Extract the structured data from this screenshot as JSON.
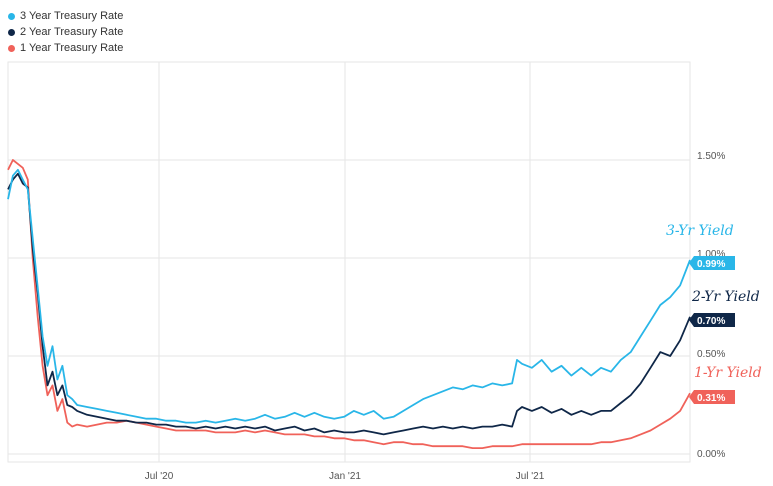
{
  "chart_data": {
    "type": "line",
    "x_axis_ticks": [
      "Jul '20",
      "Jan '21",
      "Jul '21"
    ],
    "y_axis_ticks": [
      "0.00%",
      "0.50%",
      "1.00%",
      "1.50%"
    ],
    "ylim": [
      0,
      2.0
    ],
    "grid": true,
    "legend_position": "top-left",
    "series": [
      {
        "name": "3 Year Treasury Rate",
        "color": "#29b6e8",
        "callout": "3-Yr Yield",
        "end_label": "0.99%",
        "points": [
          [
            0,
            1.3
          ],
          [
            5,
            1.42
          ],
          [
            10,
            1.45
          ],
          [
            15,
            1.4
          ],
          [
            20,
            1.35
          ],
          [
            25,
            1.1
          ],
          [
            30,
            0.85
          ],
          [
            35,
            0.6
          ],
          [
            40,
            0.45
          ],
          [
            45,
            0.55
          ],
          [
            50,
            0.38
          ],
          [
            55,
            0.45
          ],
          [
            60,
            0.3
          ],
          [
            65,
            0.28
          ],
          [
            70,
            0.25
          ],
          [
            80,
            0.24
          ],
          [
            90,
            0.23
          ],
          [
            100,
            0.22
          ],
          [
            110,
            0.21
          ],
          [
            120,
            0.2
          ],
          [
            130,
            0.19
          ],
          [
            140,
            0.18
          ],
          [
            150,
            0.18
          ],
          [
            160,
            0.17
          ],
          [
            170,
            0.17
          ],
          [
            180,
            0.16
          ],
          [
            190,
            0.16
          ],
          [
            200,
            0.17
          ],
          [
            210,
            0.16
          ],
          [
            220,
            0.17
          ],
          [
            230,
            0.18
          ],
          [
            240,
            0.17
          ],
          [
            250,
            0.18
          ],
          [
            260,
            0.2
          ],
          [
            270,
            0.18
          ],
          [
            280,
            0.19
          ],
          [
            290,
            0.21
          ],
          [
            300,
            0.19
          ],
          [
            310,
            0.21
          ],
          [
            320,
            0.19
          ],
          [
            330,
            0.18
          ],
          [
            340,
            0.19
          ],
          [
            350,
            0.22
          ],
          [
            360,
            0.2
          ],
          [
            370,
            0.22
          ],
          [
            380,
            0.18
          ],
          [
            390,
            0.19
          ],
          [
            400,
            0.22
          ],
          [
            410,
            0.25
          ],
          [
            420,
            0.28
          ],
          [
            430,
            0.3
          ],
          [
            440,
            0.32
          ],
          [
            450,
            0.34
          ],
          [
            460,
            0.33
          ],
          [
            470,
            0.35
          ],
          [
            480,
            0.34
          ],
          [
            490,
            0.36
          ],
          [
            500,
            0.35
          ],
          [
            510,
            0.36
          ],
          [
            515,
            0.48
          ],
          [
            520,
            0.46
          ],
          [
            530,
            0.44
          ],
          [
            540,
            0.48
          ],
          [
            550,
            0.42
          ],
          [
            560,
            0.45
          ],
          [
            570,
            0.4
          ],
          [
            580,
            0.44
          ],
          [
            590,
            0.4
          ],
          [
            600,
            0.44
          ],
          [
            610,
            0.42
          ],
          [
            620,
            0.48
          ],
          [
            630,
            0.52
          ],
          [
            640,
            0.6
          ],
          [
            650,
            0.68
          ],
          [
            660,
            0.76
          ],
          [
            670,
            0.8
          ],
          [
            680,
            0.86
          ],
          [
            690,
            0.99
          ]
        ]
      },
      {
        "name": "2 Year Treasury Rate",
        "color": "#0f2748",
        "callout": "2-Yr Yield",
        "end_label": "0.70%",
        "points": [
          [
            0,
            1.35
          ],
          [
            5,
            1.4
          ],
          [
            10,
            1.43
          ],
          [
            15,
            1.38
          ],
          [
            20,
            1.36
          ],
          [
            25,
            1.05
          ],
          [
            30,
            0.82
          ],
          [
            35,
            0.55
          ],
          [
            40,
            0.35
          ],
          [
            45,
            0.42
          ],
          [
            50,
            0.3
          ],
          [
            55,
            0.35
          ],
          [
            60,
            0.25
          ],
          [
            65,
            0.24
          ],
          [
            70,
            0.22
          ],
          [
            80,
            0.2
          ],
          [
            90,
            0.19
          ],
          [
            100,
            0.18
          ],
          [
            110,
            0.17
          ],
          [
            120,
            0.17
          ],
          [
            130,
            0.16
          ],
          [
            140,
            0.16
          ],
          [
            150,
            0.15
          ],
          [
            160,
            0.15
          ],
          [
            170,
            0.14
          ],
          [
            180,
            0.14
          ],
          [
            190,
            0.13
          ],
          [
            200,
            0.14
          ],
          [
            210,
            0.13
          ],
          [
            220,
            0.14
          ],
          [
            230,
            0.13
          ],
          [
            240,
            0.14
          ],
          [
            250,
            0.13
          ],
          [
            260,
            0.14
          ],
          [
            270,
            0.12
          ],
          [
            280,
            0.13
          ],
          [
            290,
            0.14
          ],
          [
            300,
            0.12
          ],
          [
            310,
            0.13
          ],
          [
            320,
            0.11
          ],
          [
            330,
            0.12
          ],
          [
            340,
            0.11
          ],
          [
            350,
            0.11
          ],
          [
            360,
            0.12
          ],
          [
            370,
            0.11
          ],
          [
            380,
            0.1
          ],
          [
            390,
            0.11
          ],
          [
            400,
            0.12
          ],
          [
            410,
            0.13
          ],
          [
            420,
            0.14
          ],
          [
            430,
            0.13
          ],
          [
            440,
            0.14
          ],
          [
            450,
            0.13
          ],
          [
            460,
            0.14
          ],
          [
            470,
            0.13
          ],
          [
            480,
            0.14
          ],
          [
            490,
            0.14
          ],
          [
            500,
            0.15
          ],
          [
            510,
            0.14
          ],
          [
            515,
            0.22
          ],
          [
            520,
            0.24
          ],
          [
            530,
            0.22
          ],
          [
            540,
            0.24
          ],
          [
            550,
            0.21
          ],
          [
            560,
            0.23
          ],
          [
            570,
            0.2
          ],
          [
            580,
            0.22
          ],
          [
            590,
            0.2
          ],
          [
            600,
            0.22
          ],
          [
            610,
            0.22
          ],
          [
            620,
            0.26
          ],
          [
            630,
            0.3
          ],
          [
            640,
            0.36
          ],
          [
            650,
            0.44
          ],
          [
            660,
            0.52
          ],
          [
            670,
            0.5
          ],
          [
            680,
            0.58
          ],
          [
            690,
            0.7
          ]
        ]
      },
      {
        "name": "1 Year Treasury Rate",
        "color": "#f0625a",
        "callout": "1-Yr Yield",
        "end_label": "0.31%",
        "points": [
          [
            0,
            1.45
          ],
          [
            5,
            1.5
          ],
          [
            10,
            1.48
          ],
          [
            15,
            1.46
          ],
          [
            20,
            1.4
          ],
          [
            25,
            1.0
          ],
          [
            30,
            0.7
          ],
          [
            35,
            0.45
          ],
          [
            40,
            0.3
          ],
          [
            45,
            0.35
          ],
          [
            50,
            0.22
          ],
          [
            55,
            0.28
          ],
          [
            60,
            0.16
          ],
          [
            65,
            0.14
          ],
          [
            70,
            0.15
          ],
          [
            80,
            0.14
          ],
          [
            90,
            0.15
          ],
          [
            100,
            0.16
          ],
          [
            110,
            0.16
          ],
          [
            120,
            0.17
          ],
          [
            130,
            0.16
          ],
          [
            140,
            0.15
          ],
          [
            150,
            0.14
          ],
          [
            160,
            0.13
          ],
          [
            170,
            0.12
          ],
          [
            180,
            0.12
          ],
          [
            190,
            0.12
          ],
          [
            200,
            0.12
          ],
          [
            210,
            0.11
          ],
          [
            220,
            0.11
          ],
          [
            230,
            0.11
          ],
          [
            240,
            0.12
          ],
          [
            250,
            0.11
          ],
          [
            260,
            0.12
          ],
          [
            270,
            0.11
          ],
          [
            280,
            0.1
          ],
          [
            290,
            0.1
          ],
          [
            300,
            0.1
          ],
          [
            310,
            0.09
          ],
          [
            320,
            0.09
          ],
          [
            330,
            0.08
          ],
          [
            340,
            0.08
          ],
          [
            350,
            0.07
          ],
          [
            360,
            0.07
          ],
          [
            370,
            0.06
          ],
          [
            380,
            0.05
          ],
          [
            390,
            0.06
          ],
          [
            400,
            0.06
          ],
          [
            410,
            0.05
          ],
          [
            420,
            0.05
          ],
          [
            430,
            0.04
          ],
          [
            440,
            0.04
          ],
          [
            450,
            0.04
          ],
          [
            460,
            0.04
          ],
          [
            470,
            0.03
          ],
          [
            480,
            0.03
          ],
          [
            490,
            0.04
          ],
          [
            500,
            0.04
          ],
          [
            510,
            0.04
          ],
          [
            520,
            0.05
          ],
          [
            530,
            0.05
          ],
          [
            540,
            0.05
          ],
          [
            550,
            0.05
          ],
          [
            560,
            0.05
          ],
          [
            570,
            0.05
          ],
          [
            580,
            0.05
          ],
          [
            590,
            0.05
          ],
          [
            600,
            0.06
          ],
          [
            610,
            0.06
          ],
          [
            620,
            0.07
          ],
          [
            630,
            0.08
          ],
          [
            640,
            0.1
          ],
          [
            650,
            0.12
          ],
          [
            660,
            0.15
          ],
          [
            670,
            0.18
          ],
          [
            680,
            0.22
          ],
          [
            690,
            0.31
          ]
        ]
      }
    ]
  }
}
